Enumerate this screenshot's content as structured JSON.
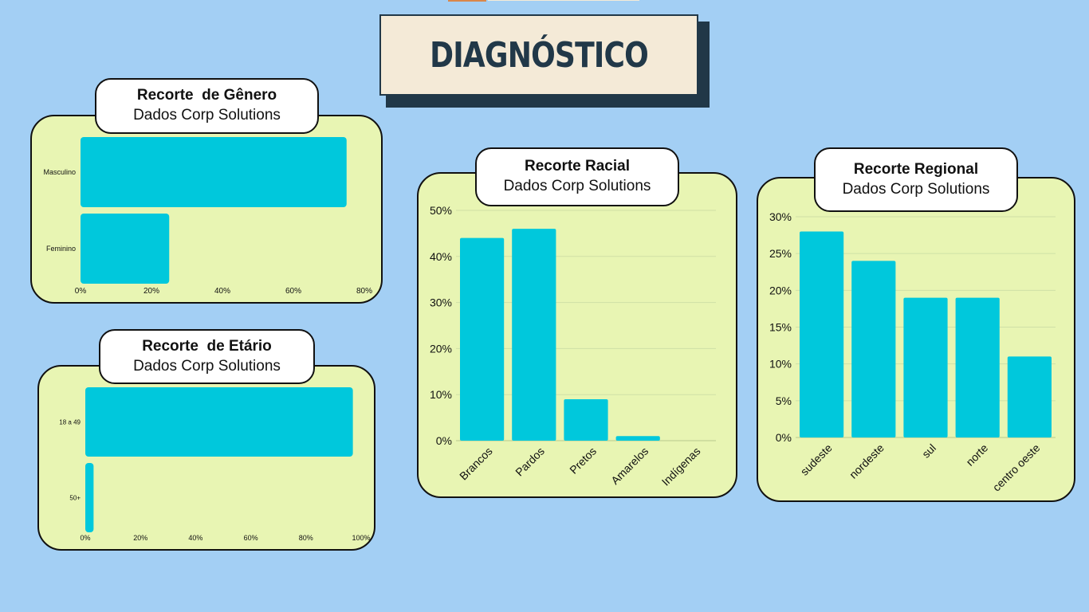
{
  "page_title": "DIAGNÓSTICO",
  "colors": {
    "background": "#a3cff4",
    "card": "#e8f5b3",
    "bar": "#00c8dc",
    "title_bg": "#f4ead7",
    "title_text": "#213848"
  },
  "chart_data": [
    {
      "id": "genero",
      "type": "bar",
      "orientation": "horizontal",
      "title": "Recorte  de Gênero",
      "subtitle": "Dados Corp Solutions",
      "categories": [
        "Masculino",
        "Feminino"
      ],
      "values": [
        75,
        25
      ],
      "xlim": [
        0,
        80
      ],
      "ticks": [
        "0%",
        "20%",
        "40%",
        "60%",
        "80%"
      ],
      "tick_values": [
        0,
        20,
        40,
        60,
        80
      ],
      "grid": false
    },
    {
      "id": "etario",
      "type": "bar",
      "orientation": "horizontal",
      "title": "Recorte  de Etário",
      "subtitle": "Dados Corp Solutions",
      "categories": [
        "18 a 49",
        "50+"
      ],
      "values": [
        97,
        3
      ],
      "xlim": [
        0,
        100
      ],
      "ticks": [
        "0%",
        "20%",
        "40%",
        "60%",
        "80%",
        "100%"
      ],
      "tick_values": [
        0,
        20,
        40,
        60,
        80,
        100
      ],
      "grid": false
    },
    {
      "id": "racial",
      "type": "bar",
      "orientation": "vertical",
      "title": "Recorte Racial",
      "subtitle": "Dados Corp Solutions",
      "categories": [
        "Brancos",
        "Pardos",
        "Pretos",
        "Amarelos",
        "Indígenas"
      ],
      "values": [
        44,
        46,
        9,
        1,
        0
      ],
      "ylim": [
        0,
        50
      ],
      "ticks": [
        "0%",
        "10%",
        "20%",
        "30%",
        "40%",
        "50%"
      ],
      "tick_values": [
        0,
        10,
        20,
        30,
        40,
        50
      ],
      "grid": true
    },
    {
      "id": "regional",
      "type": "bar",
      "orientation": "vertical",
      "title": "Recorte Regional",
      "subtitle": "Dados Corp Solutions",
      "categories": [
        "sudeste",
        "nordeste",
        "sul",
        "norte",
        "centro oeste"
      ],
      "values": [
        28,
        24,
        19,
        19,
        11
      ],
      "ylim": [
        0,
        30
      ],
      "ticks": [
        "0%",
        "5%",
        "10%",
        "15%",
        "20%",
        "25%",
        "30%"
      ],
      "tick_values": [
        0,
        5,
        10,
        15,
        20,
        25,
        30
      ],
      "grid": true
    }
  ]
}
